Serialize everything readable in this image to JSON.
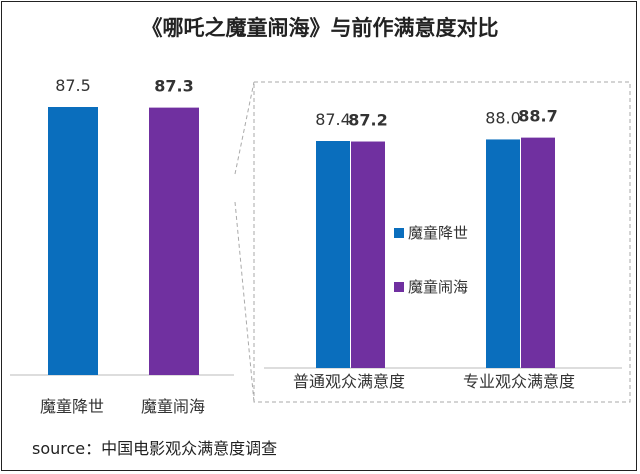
{
  "title": "《哪吒之魔童闹海》与前作满意度对比",
  "source": "source：中国电影观众满意度调查",
  "colors": {
    "blue": "#0A6EBD",
    "purple": "#7030A0",
    "text": "#333333",
    "dash": "#aaaaaa"
  },
  "chart_data": [
    {
      "type": "bar",
      "title": "",
      "categories": [
        "魔童降世",
        "魔童闹海"
      ],
      "values": [
        87.5,
        87.3
      ],
      "value_labels": [
        "87.5",
        "87.3"
      ],
      "bold": [
        false,
        true
      ]
    },
    {
      "type": "bar",
      "title": "",
      "categories": [
        "普通观众满意度",
        "专业观众满意度"
      ],
      "series": [
        {
          "name": "魔童降世",
          "values": [
            87.4,
            88.0
          ],
          "labels": [
            "87.4",
            "88.0"
          ],
          "bold": false
        },
        {
          "name": "魔童闹海",
          "values": [
            87.2,
            88.7
          ],
          "labels": [
            "87.2",
            "88.7"
          ],
          "bold": true
        }
      ],
      "legend_position": "center"
    }
  ]
}
